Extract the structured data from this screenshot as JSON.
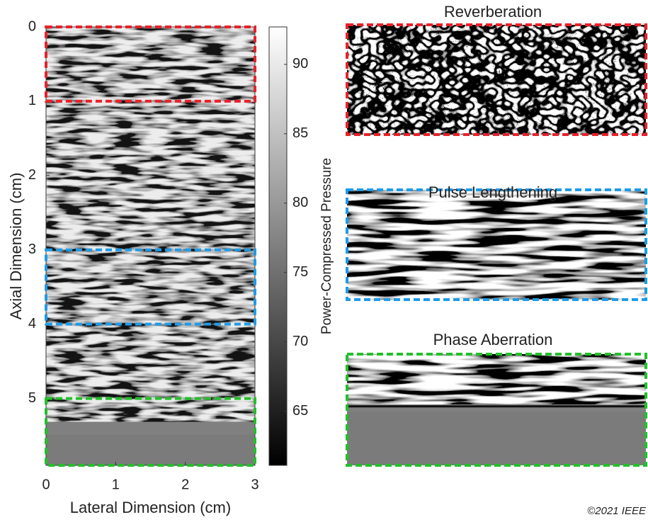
{
  "chart_data": {
    "type": "image",
    "xlabel": "Lateral Dimension (cm)",
    "ylabel": "Axial Dimension (cm)",
    "xlim": [
      0,
      3
    ],
    "xticks": [
      0,
      1,
      2,
      3
    ],
    "ylim": [
      0,
      5.9
    ],
    "yticks": [
      0,
      1,
      2,
      3,
      4,
      5
    ],
    "y_reversed": true,
    "colorbar": {
      "label": "Power-Compressed Pressure",
      "clim": [
        61.1,
        92.7
      ],
      "ticks": [
        65,
        70,
        75,
        80,
        85,
        90
      ],
      "colormap": [
        "#000000",
        "#ffffff"
      ]
    },
    "regions": [
      {
        "name": "Reverberation",
        "color": "#e8212a",
        "ylim": [
          0,
          1
        ]
      },
      {
        "name": "Pulse Lengthening",
        "color": "#1e9be8",
        "ylim": [
          3,
          4
        ]
      },
      {
        "name": "Phase Aberration",
        "color": "#22c02a",
        "ylim": [
          5,
          5.9
        ]
      }
    ],
    "copyright": "©2021 IEEE"
  }
}
